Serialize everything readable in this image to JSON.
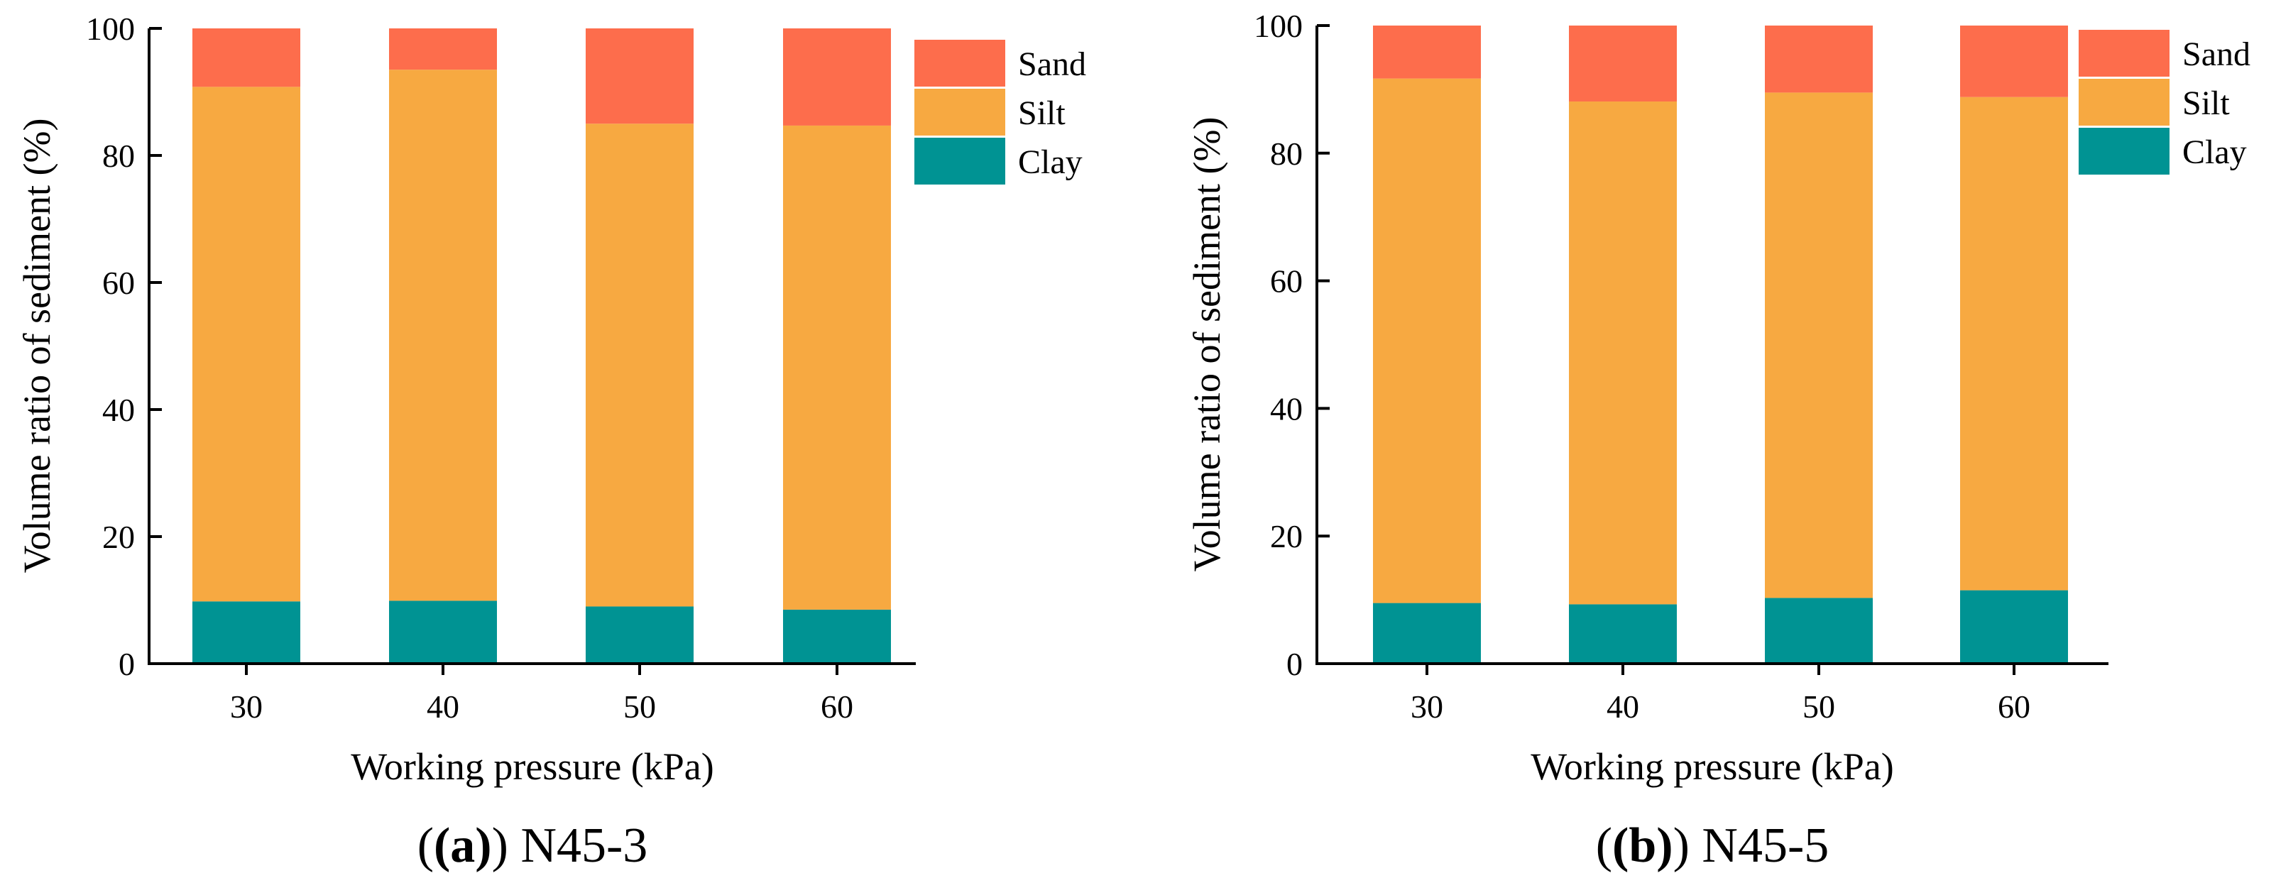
{
  "chart_data": [
    {
      "type": "bar",
      "stacked": true,
      "panel_label": "(a)",
      "panel_name": "N45-3",
      "categories": [
        "30",
        "40",
        "50",
        "60"
      ],
      "series": [
        {
          "name": "Clay",
          "color": "#009393",
          "values": [
            9.8,
            9.9,
            9.0,
            8.5
          ]
        },
        {
          "name": "Silt",
          "color": "#f7a941",
          "values": [
            81.0,
            83.6,
            76.0,
            76.2
          ]
        },
        {
          "name": "Sand",
          "color": "#fd6d4c",
          "values": [
            9.2,
            6.5,
            15.0,
            15.3
          ]
        }
      ],
      "xlabel": "Working pressure (kPa)",
      "ylabel": "Volume ratio of sediment (%)",
      "ylim": [
        0,
        100
      ],
      "yticks": [
        0,
        20,
        40,
        60,
        80,
        100
      ],
      "legend_order": [
        "Sand",
        "Silt",
        "Clay"
      ],
      "legend_position": "top-right outside"
    },
    {
      "type": "bar",
      "stacked": true,
      "panel_label": "(b)",
      "panel_name": "N45-5",
      "categories": [
        "30",
        "40",
        "50",
        "60"
      ],
      "series": [
        {
          "name": "Clay",
          "color": "#009393",
          "values": [
            9.5,
            9.3,
            10.3,
            11.5
          ]
        },
        {
          "name": "Silt",
          "color": "#f7a941",
          "values": [
            82.2,
            78.8,
            79.2,
            77.3
          ]
        },
        {
          "name": "Sand",
          "color": "#fd6d4c",
          "values": [
            8.3,
            11.9,
            10.5,
            11.2
          ]
        }
      ],
      "xlabel": "Working pressure (kPa)",
      "ylabel": "Volume ratio of sediment (%)",
      "ylim": [
        0,
        100
      ],
      "yticks": [
        0,
        20,
        40,
        60,
        80,
        100
      ],
      "legend_order": [
        "Sand",
        "Silt",
        "Clay"
      ],
      "legend_position": "top-right outside"
    }
  ]
}
